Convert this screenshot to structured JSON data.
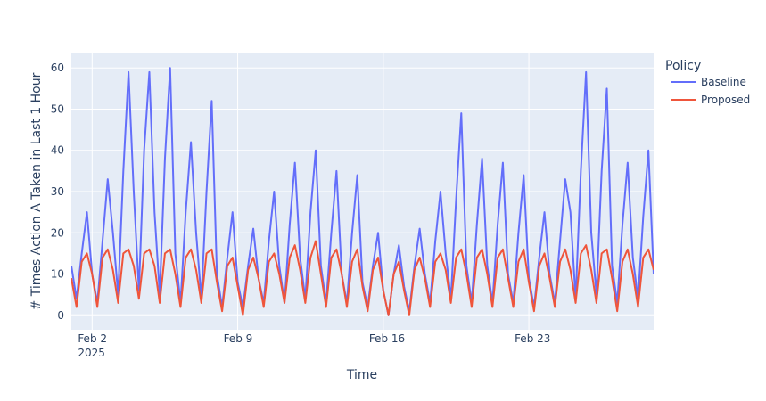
{
  "chart_data": {
    "type": "line",
    "xlabel": "Time",
    "ylabel": "# Times Action A Taken in Last 1 Hour",
    "legend_title": "Policy",
    "legend": "right",
    "grid": true,
    "x": [
      "2025-02-01T00:00",
      "2025-02-01T06:00",
      "2025-02-01T12:00",
      "2025-02-01T18:00",
      "2025-02-02T00:00",
      "2025-02-02T06:00",
      "2025-02-02T12:00",
      "2025-02-02T18:00",
      "2025-02-03T00:00",
      "2025-02-03T06:00",
      "2025-02-03T12:00",
      "2025-02-03T18:00",
      "2025-02-04T00:00",
      "2025-02-04T06:00",
      "2025-02-04T12:00",
      "2025-02-04T18:00",
      "2025-02-05T00:00",
      "2025-02-05T06:00",
      "2025-02-05T12:00",
      "2025-02-05T18:00",
      "2025-02-06T00:00",
      "2025-02-06T06:00",
      "2025-02-06T12:00",
      "2025-02-06T18:00",
      "2025-02-07T00:00",
      "2025-02-07T06:00",
      "2025-02-07T12:00",
      "2025-02-07T18:00",
      "2025-02-08T00:00",
      "2025-02-08T06:00",
      "2025-02-08T12:00",
      "2025-02-08T18:00",
      "2025-02-09T00:00",
      "2025-02-09T06:00",
      "2025-02-09T12:00",
      "2025-02-09T18:00",
      "2025-02-10T00:00",
      "2025-02-10T06:00",
      "2025-02-10T12:00",
      "2025-02-10T18:00",
      "2025-02-11T00:00",
      "2025-02-11T06:00",
      "2025-02-11T12:00",
      "2025-02-11T18:00",
      "2025-02-12T00:00",
      "2025-02-12T06:00",
      "2025-02-12T12:00",
      "2025-02-12T18:00",
      "2025-02-13T00:00",
      "2025-02-13T06:00",
      "2025-02-13T12:00",
      "2025-02-13T18:00",
      "2025-02-14T00:00",
      "2025-02-14T06:00",
      "2025-02-14T12:00",
      "2025-02-14T18:00",
      "2025-02-15T00:00",
      "2025-02-15T06:00",
      "2025-02-15T12:00",
      "2025-02-15T18:00",
      "2025-02-16T00:00",
      "2025-02-16T06:00",
      "2025-02-16T12:00",
      "2025-02-16T18:00",
      "2025-02-17T00:00",
      "2025-02-17T06:00",
      "2025-02-17T12:00",
      "2025-02-17T18:00",
      "2025-02-18T00:00",
      "2025-02-18T06:00",
      "2025-02-18T12:00",
      "2025-02-18T18:00",
      "2025-02-19T00:00",
      "2025-02-19T06:00",
      "2025-02-19T12:00",
      "2025-02-19T18:00",
      "2025-02-20T00:00",
      "2025-02-20T06:00",
      "2025-02-20T12:00",
      "2025-02-20T18:00",
      "2025-02-21T00:00",
      "2025-02-21T06:00",
      "2025-02-21T12:00",
      "2025-02-21T18:00",
      "2025-02-22T00:00",
      "2025-02-22T06:00",
      "2025-02-22T12:00",
      "2025-02-22T18:00",
      "2025-02-23T00:00",
      "2025-02-23T06:00",
      "2025-02-23T12:00",
      "2025-02-23T18:00",
      "2025-02-24T00:00",
      "2025-02-24T06:00",
      "2025-02-24T12:00",
      "2025-02-24T18:00",
      "2025-02-25T00:00",
      "2025-02-25T06:00",
      "2025-02-25T12:00",
      "2025-02-25T18:00",
      "2025-02-26T00:00",
      "2025-02-26T06:00",
      "2025-02-26T12:00",
      "2025-02-26T18:00",
      "2025-02-27T00:00",
      "2025-02-27T06:00",
      "2025-02-27T12:00",
      "2025-02-27T18:00",
      "2025-02-28T00:00",
      "2025-02-28T06:00",
      "2025-02-28T12:00",
      "2025-02-28T18:00",
      "2025-03-01T00:00"
    ],
    "series": [
      {
        "name": "Baseline",
        "color": "#636efa",
        "values": [
          12,
          4,
          15,
          25,
          10,
          3,
          18,
          33,
          20,
          5,
          35,
          59,
          30,
          6,
          40,
          59,
          25,
          5,
          38,
          60,
          15,
          3,
          25,
          42,
          20,
          4,
          30,
          52,
          10,
          2,
          14,
          25,
          8,
          2,
          12,
          21,
          9,
          3,
          18,
          30,
          12,
          3,
          22,
          37,
          14,
          4,
          25,
          40,
          12,
          3,
          20,
          35,
          10,
          3,
          20,
          34,
          8,
          2,
          12,
          20,
          6,
          0,
          10,
          17,
          7,
          1,
          12,
          21,
          10,
          3,
          18,
          30,
          15,
          4,
          28,
          49,
          12,
          3,
          22,
          38,
          12,
          3,
          22,
          37,
          10,
          3,
          20,
          34,
          9,
          2,
          14,
          25,
          10,
          3,
          18,
          33,
          25,
          4,
          35,
          59,
          20,
          5,
          35,
          55,
          12,
          3,
          22,
          37,
          14,
          4,
          24,
          40,
          10
        ]
      },
      {
        "name": "Proposed",
        "color": "#ef553b",
        "values": [
          9,
          2,
          13,
          15,
          10,
          2,
          14,
          16,
          11,
          3,
          15,
          16,
          12,
          4,
          15,
          16,
          12,
          3,
          15,
          16,
          10,
          2,
          14,
          16,
          11,
          3,
          15,
          16,
          8,
          1,
          12,
          14,
          7,
          0,
          11,
          14,
          9,
          2,
          13,
          15,
          10,
          3,
          14,
          17,
          11,
          3,
          14,
          18,
          10,
          2,
          14,
          16,
          10,
          2,
          13,
          16,
          7,
          1,
          11,
          14,
          6,
          0,
          10,
          13,
          6,
          0,
          11,
          14,
          9,
          2,
          13,
          15,
          11,
          3,
          14,
          16,
          10,
          2,
          14,
          16,
          10,
          2,
          14,
          16,
          9,
          2,
          13,
          16,
          8,
          1,
          12,
          15,
          9,
          2,
          13,
          16,
          11,
          3,
          15,
          17,
          11,
          3,
          15,
          16,
          9,
          1,
          13,
          16,
          10,
          2,
          14,
          16,
          11
        ]
      }
    ],
    "xlim": [
      "2025-02-01T00:00",
      "2025-03-01T00:00"
    ],
    "xticks": [
      {
        "value": "2025-02-02T00:00",
        "label": [
          "Feb 2",
          "2025"
        ]
      },
      {
        "value": "2025-02-09T00:00",
        "label": [
          "Feb 9"
        ]
      },
      {
        "value": "2025-02-16T00:00",
        "label": [
          "Feb 16"
        ]
      },
      {
        "value": "2025-02-23T00:00",
        "label": [
          "Feb 23"
        ]
      }
    ],
    "ylim": [
      -3.5,
      63.5
    ],
    "yticks": [
      0,
      10,
      20,
      30,
      40,
      50,
      60
    ]
  }
}
